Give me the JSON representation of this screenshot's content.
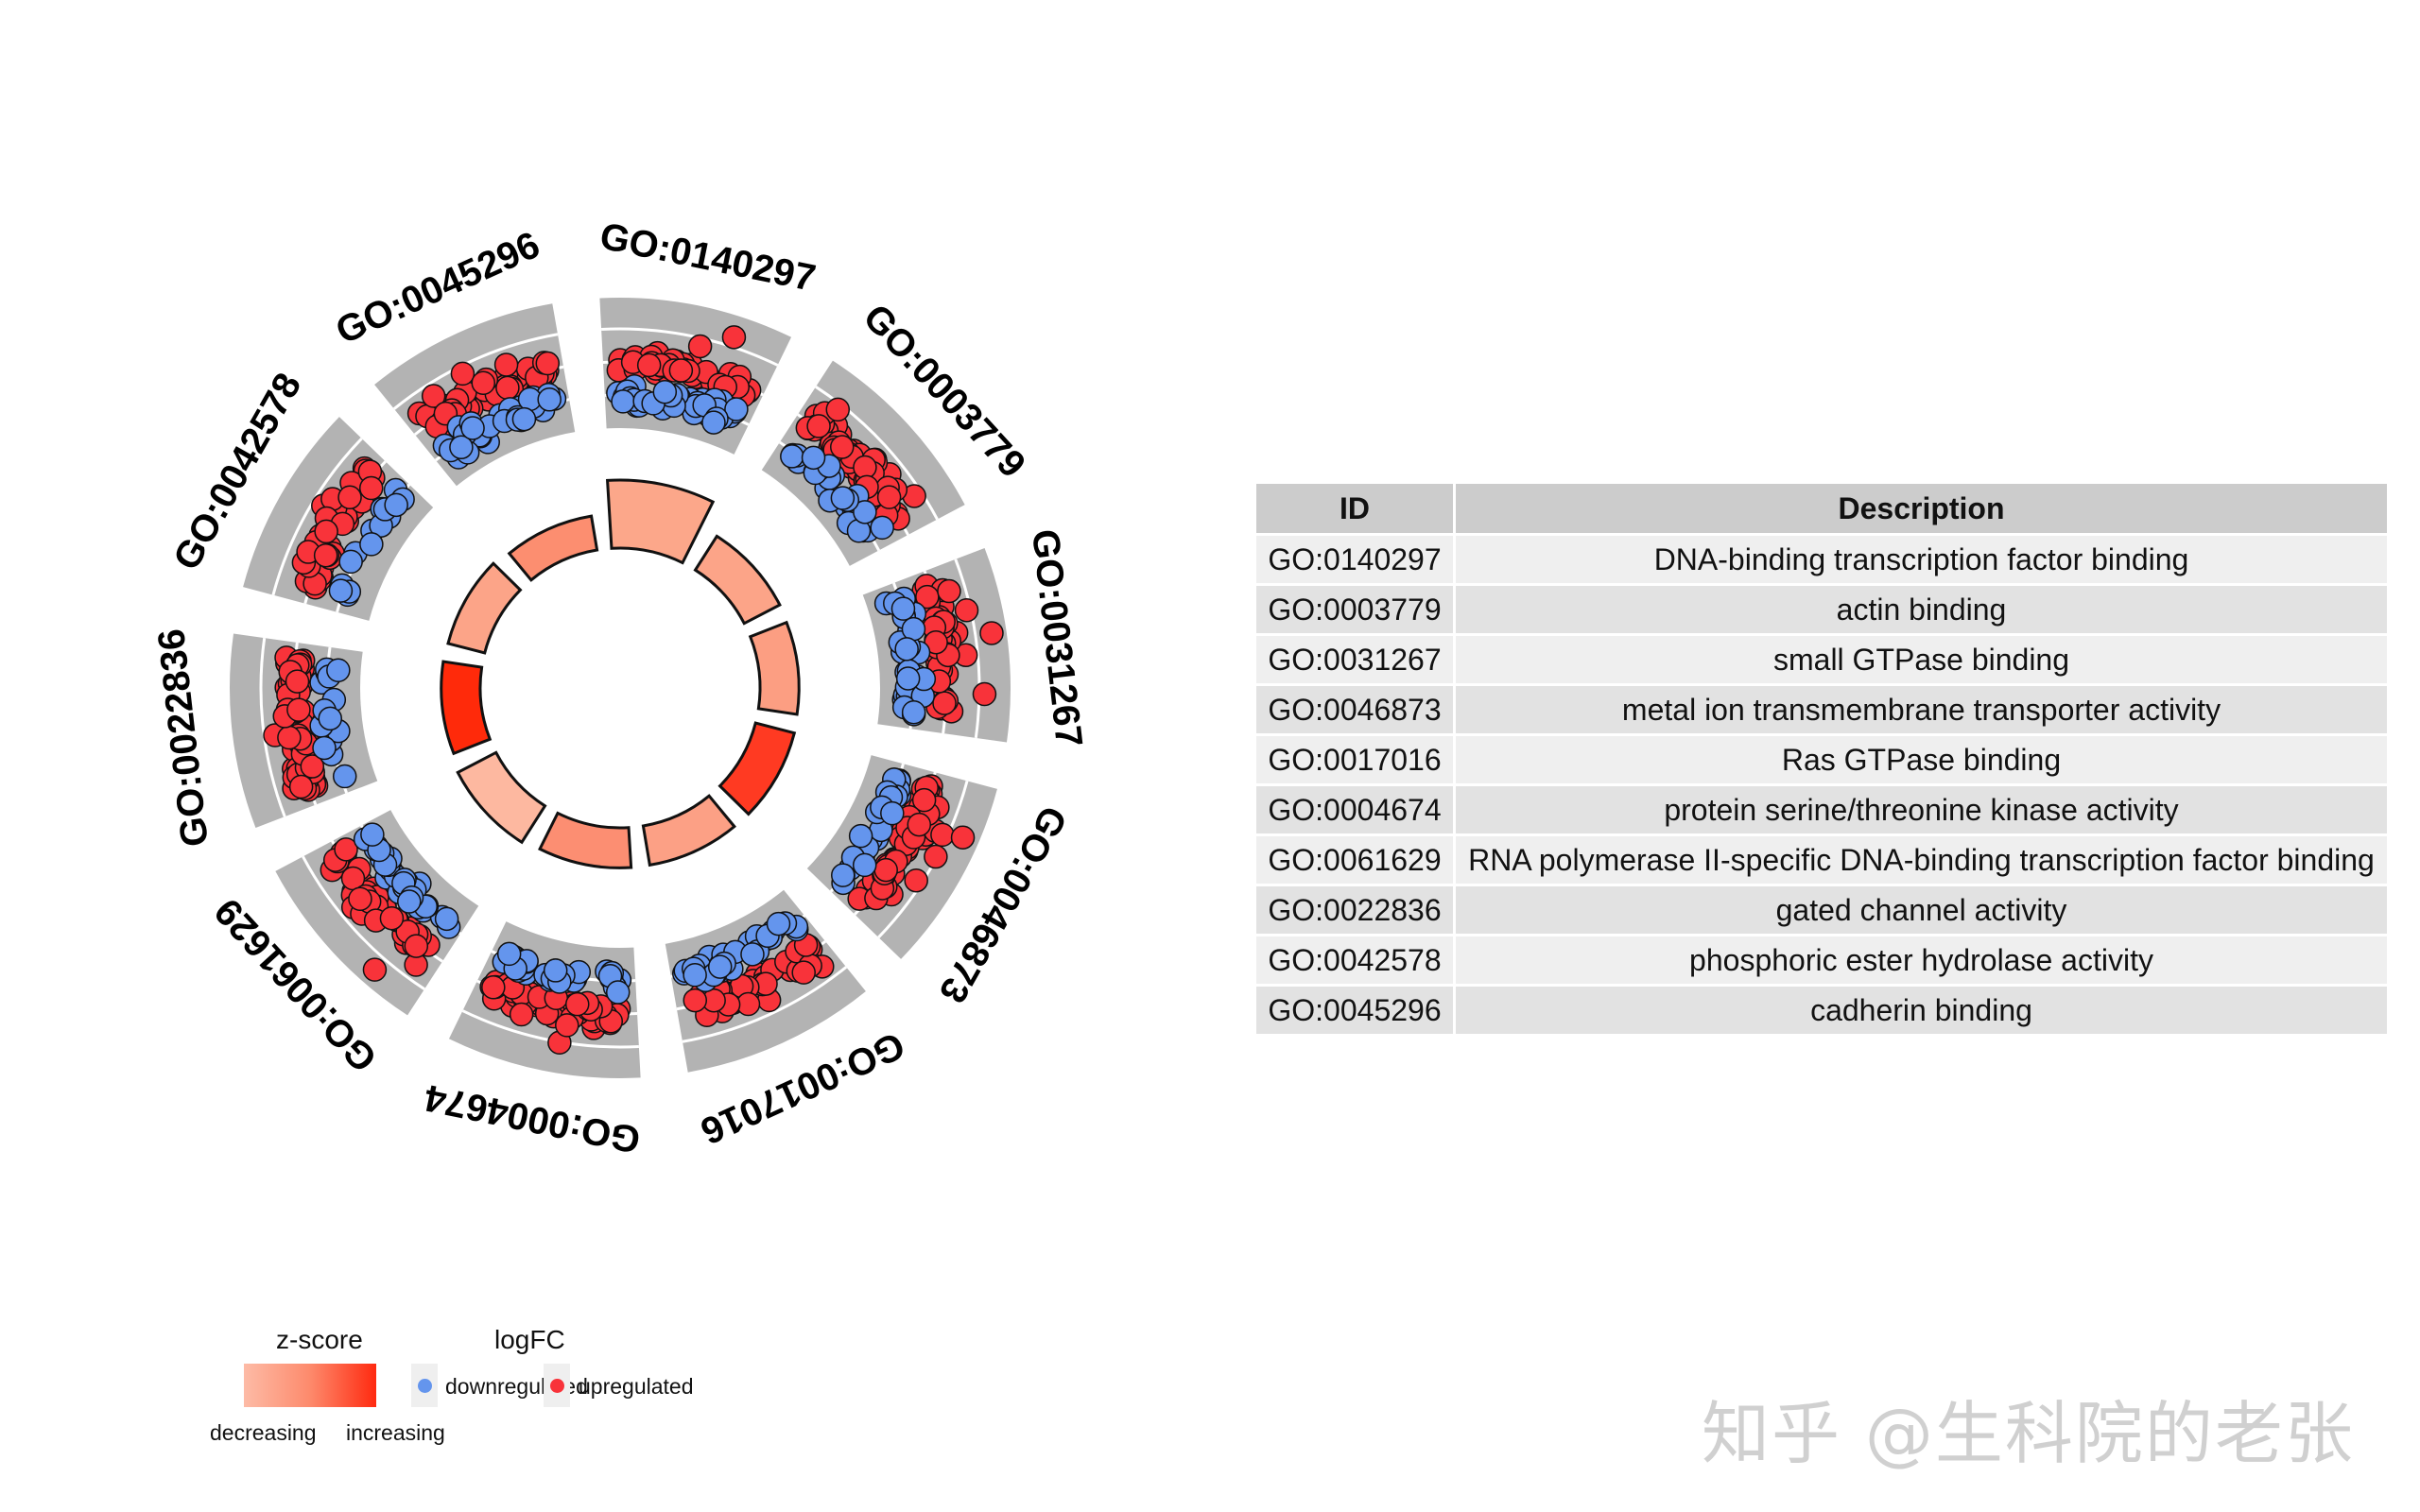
{
  "chart_data": {
    "type": "circular-go-plot",
    "colors": {
      "up": "#f8333a",
      "down": "#6495ed",
      "band": "#b3b3b3",
      "outline": "#111111"
    },
    "terms": [
      {
        "id": "GO:0140297",
        "description": "DNA-binding transcription factor binding",
        "bar": 1.0,
        "color": "#fca78a",
        "up": 60,
        "down": 40
      },
      {
        "id": "GO:0003779",
        "description": "actin binding",
        "bar": 0.61,
        "color": "#fca488",
        "up": 70,
        "down": 30
      },
      {
        "id": "GO:0031267",
        "description": "small GTPase binding",
        "bar": 0.58,
        "color": "#fc9e82",
        "up": 55,
        "down": 30
      },
      {
        "id": "GO:0046873",
        "description": "metal ion transmembrane transporter activity",
        "bar": 0.61,
        "color": "#ff3a22",
        "up": 75,
        "down": 25
      },
      {
        "id": "GO:0017016",
        "description": "Ras GTPase binding",
        "bar": 0.6,
        "color": "#fca085",
        "up": 50,
        "down": 30
      },
      {
        "id": "GO:0004674",
        "description": "protein serine/threonine kinase activity",
        "bar": 0.61,
        "color": "#fc8e72",
        "up": 55,
        "down": 30
      },
      {
        "id": "GO:0061629",
        "description": "RNA polymerase II-specific DNA-binding transcription factor binding",
        "bar": 0.69,
        "color": "#fdb8a0",
        "up": 45,
        "down": 30
      },
      {
        "id": "GO:0022836",
        "description": "gated channel activity",
        "bar": 0.58,
        "color": "#ff2a0a",
        "up": 70,
        "down": 15
      },
      {
        "id": "GO:0042578",
        "description": "phosphoric ester hydrolase activity",
        "bar": 0.55,
        "color": "#fca488",
        "up": 45,
        "down": 15
      },
      {
        "id": "GO:0045296",
        "description": "cadherin binding",
        "bar": 0.46,
        "color": "#fc8e70",
        "up": 55,
        "down": 30
      }
    ]
  },
  "table": {
    "headers": [
      "ID",
      "Description"
    ]
  },
  "legend": {
    "zscore_title": "z-score",
    "zscore_low": "decreasing",
    "zscore_high": "increasing",
    "logfc_title": "logFC",
    "down_label": "downregulated",
    "up_label": "upregulated"
  },
  "watermark": "知乎 @生科院的老张"
}
